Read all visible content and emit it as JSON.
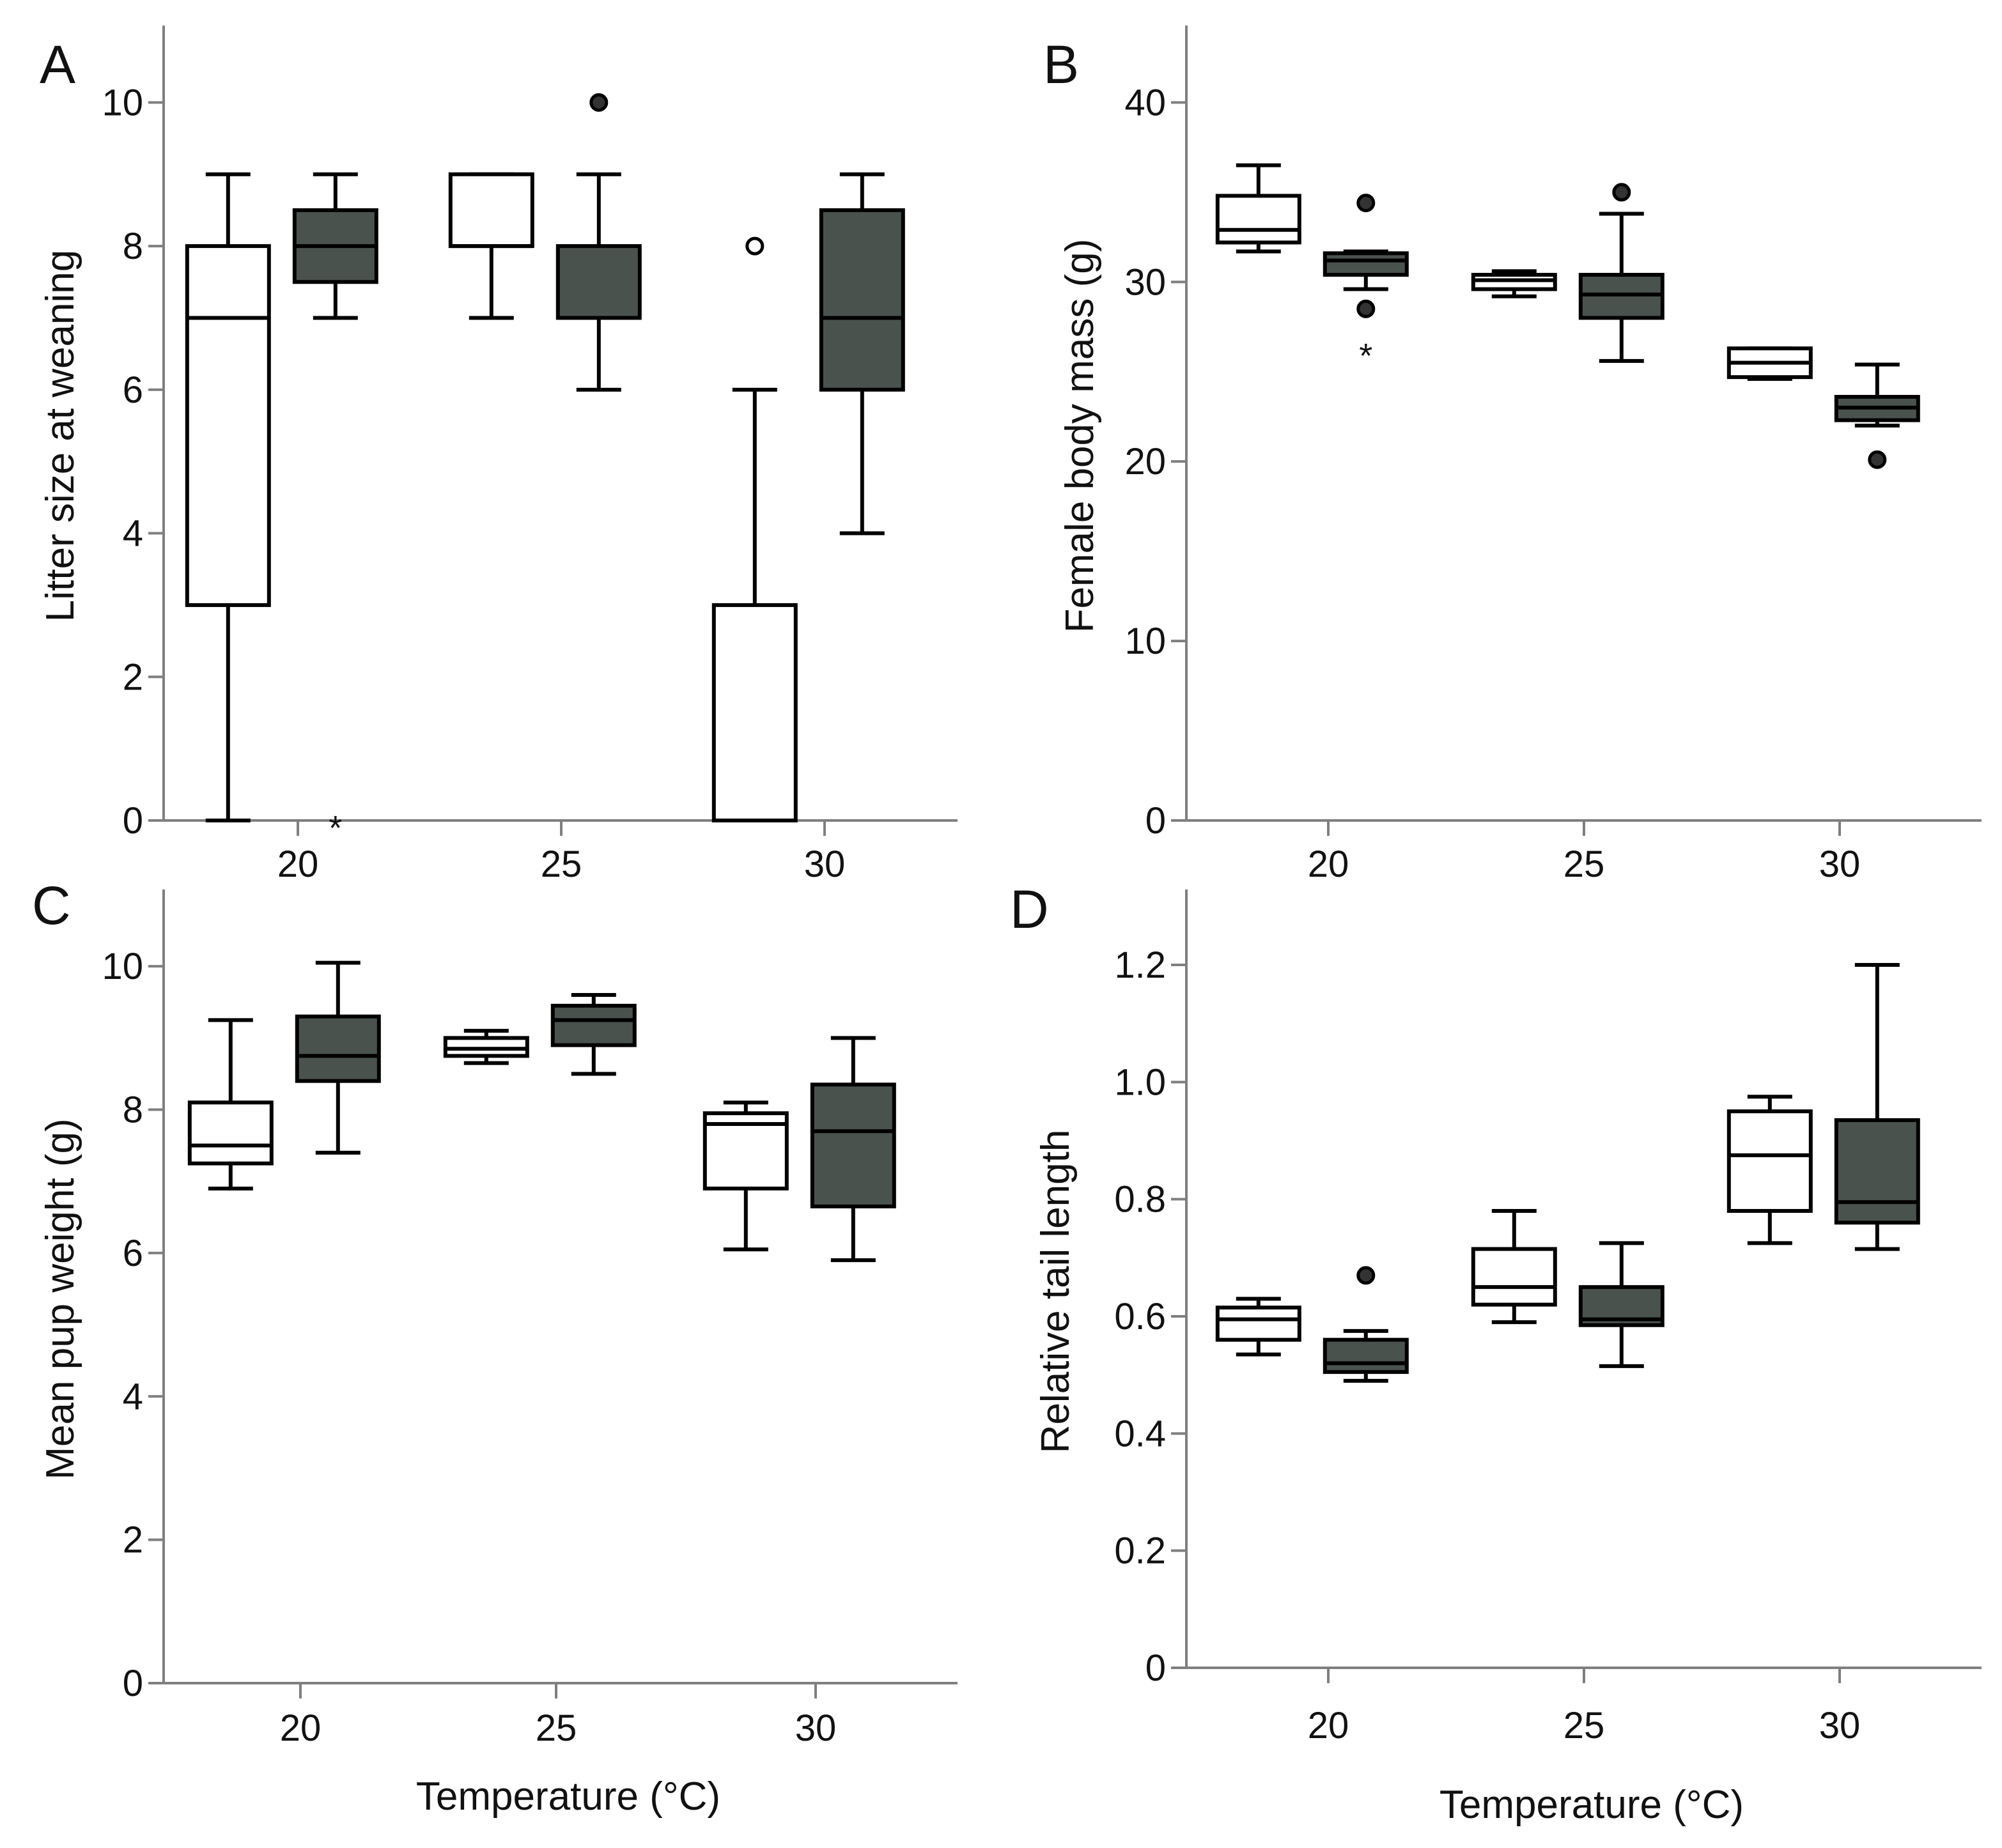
{
  "colors": {
    "box_open": "#ffffff",
    "box_filled": "#4a524e",
    "median_on_filled": "#000000",
    "outlier_star": "#6d6d6d",
    "axis": "#7f7f7f"
  },
  "chart_data": [
    {
      "type": "box",
      "panel": "A",
      "title": "",
      "xlabel": "",
      "ylabel": "Litter size at weaning",
      "categories": [
        "20",
        "25",
        "30"
      ],
      "yticks": [
        "0",
        "2",
        "4",
        "6",
        "8",
        "10"
      ],
      "ylim": [
        0,
        11
      ],
      "series": [
        {
          "name": "open",
          "boxes": [
            {
              "category": "20",
              "whisker_low": 0,
              "q1": 3,
              "median": 7,
              "q3": 8,
              "whisker_high": 9,
              "outliers": []
            },
            {
              "category": "25",
              "whisker_low": 7,
              "q1": 8,
              "median": 8,
              "q3": 9,
              "whisker_high": 9,
              "outliers": []
            },
            {
              "category": "30",
              "whisker_low": 0,
              "q1": 0,
              "median": 0,
              "q3": 3,
              "whisker_high": 6,
              "outliers": [
                {
                  "value": 8,
                  "marker": "open-circle"
                }
              ]
            }
          ]
        },
        {
          "name": "filled",
          "boxes": [
            {
              "category": "20",
              "whisker_low": 7,
              "q1": 7.5,
              "median": 8,
              "q3": 8.5,
              "whisker_high": 9,
              "outliers": [
                {
                  "value": 0,
                  "marker": "star"
                }
              ]
            },
            {
              "category": "25",
              "whisker_low": 6,
              "q1": 7,
              "median": 7,
              "q3": 8,
              "whisker_high": 9,
              "outliers": [
                {
                  "value": 10,
                  "marker": "filled-circle"
                }
              ]
            },
            {
              "category": "30",
              "whisker_low": 4,
              "q1": 6,
              "median": 7,
              "q3": 8.5,
              "whisker_high": 9,
              "outliers": []
            }
          ]
        }
      ]
    },
    {
      "type": "box",
      "panel": "B",
      "title": "",
      "xlabel": "",
      "ylabel": "Female body mass (g)",
      "categories": [
        "20",
        "25",
        "30"
      ],
      "yticks": [
        "0",
        "10",
        "20",
        "30",
        "40"
      ],
      "ylim": [
        0,
        44
      ],
      "series": [
        {
          "name": "open",
          "boxes": [
            {
              "category": "20",
              "whisker_low": 31.7,
              "q1": 32.2,
              "median": 32.9,
              "q3": 34.8,
              "whisker_high": 36.5,
              "outliers": []
            },
            {
              "category": "25",
              "whisker_low": 29.2,
              "q1": 29.6,
              "median": 30.1,
              "q3": 30.4,
              "whisker_high": 30.6,
              "outliers": []
            },
            {
              "category": "30",
              "whisker_low": 24.6,
              "q1": 24.7,
              "median": 25.5,
              "q3": 26.3,
              "whisker_high": 26.3,
              "outliers": []
            }
          ]
        },
        {
          "name": "filled",
          "boxes": [
            {
              "category": "20",
              "whisker_low": 29.6,
              "q1": 30.4,
              "median": 31.2,
              "q3": 31.6,
              "whisker_high": 31.7,
              "outliers": [
                {
                  "value": 34.4,
                  "marker": "filled-circle"
                },
                {
                  "value": 28.5,
                  "marker": "filled-circle"
                },
                {
                  "value": 26.3,
                  "marker": "star"
                }
              ]
            },
            {
              "category": "25",
              "whisker_low": 25.6,
              "q1": 28.0,
              "median": 29.3,
              "q3": 30.4,
              "whisker_high": 33.8,
              "outliers": [
                {
                  "value": 35.0,
                  "marker": "filled-circle"
                }
              ]
            },
            {
              "category": "30",
              "whisker_low": 22.0,
              "q1": 22.3,
              "median": 23.0,
              "q3": 23.6,
              "whisker_high": 25.4,
              "outliers": [
                {
                  "value": 20.1,
                  "marker": "filled-circle"
                }
              ]
            }
          ]
        }
      ]
    },
    {
      "type": "box",
      "panel": "C",
      "title": "",
      "xlabel": "Temperature (°C)",
      "ylabel": "Mean pup weight (g)",
      "categories": [
        "20",
        "25",
        "30"
      ],
      "yticks": [
        "0",
        "2",
        "4",
        "6",
        "8",
        "10"
      ],
      "ylim": [
        0,
        11
      ],
      "series": [
        {
          "name": "open",
          "boxes": [
            {
              "category": "20",
              "whisker_low": 6.9,
              "q1": 7.25,
              "median": 7.5,
              "q3": 8.1,
              "whisker_high": 9.25,
              "outliers": []
            },
            {
              "category": "25",
              "whisker_low": 8.65,
              "q1": 8.75,
              "median": 8.85,
              "q3": 9.0,
              "whisker_high": 9.1,
              "outliers": []
            },
            {
              "category": "30",
              "whisker_low": 6.05,
              "q1": 6.9,
              "median": 7.8,
              "q3": 7.95,
              "whisker_high": 8.1,
              "outliers": []
            }
          ]
        },
        {
          "name": "filled",
          "boxes": [
            {
              "category": "20",
              "whisker_low": 7.4,
              "q1": 8.4,
              "median": 8.75,
              "q3": 9.3,
              "whisker_high": 10.05,
              "outliers": []
            },
            {
              "category": "25",
              "whisker_low": 8.5,
              "q1": 8.9,
              "median": 9.25,
              "q3": 9.45,
              "whisker_high": 9.6,
              "outliers": []
            },
            {
              "category": "30",
              "whisker_low": 5.9,
              "q1": 6.65,
              "median": 7.7,
              "q3": 8.35,
              "whisker_high": 9.0,
              "outliers": []
            }
          ]
        }
      ]
    },
    {
      "type": "box",
      "panel": "D",
      "title": "",
      "xlabel": "Temperature (°C)",
      "ylabel": "Relative tail length",
      "categories": [
        "20",
        "25",
        "30"
      ],
      "yticks": [
        "0",
        "0.2",
        "0.4",
        "0.6",
        "0.8",
        "1.0",
        "1.2"
      ],
      "ylim": [
        0,
        1.32
      ],
      "series": [
        {
          "name": "open",
          "boxes": [
            {
              "category": "20",
              "whisker_low": 0.535,
              "q1": 0.56,
              "median": 0.595,
              "q3": 0.615,
              "whisker_high": 0.63,
              "outliers": []
            },
            {
              "category": "25",
              "whisker_low": 0.59,
              "q1": 0.62,
              "median": 0.65,
              "q3": 0.715,
              "whisker_high": 0.78,
              "outliers": []
            },
            {
              "category": "30",
              "whisker_low": 0.725,
              "q1": 0.78,
              "median": 0.875,
              "q3": 0.95,
              "whisker_high": 0.975,
              "outliers": []
            }
          ]
        },
        {
          "name": "filled",
          "boxes": [
            {
              "category": "20",
              "whisker_low": 0.49,
              "q1": 0.505,
              "median": 0.52,
              "q3": 0.56,
              "whisker_high": 0.575,
              "outliers": [
                {
                  "value": 0.67,
                  "marker": "filled-circle"
                }
              ]
            },
            {
              "category": "25",
              "whisker_low": 0.515,
              "q1": 0.585,
              "median": 0.595,
              "q3": 0.65,
              "whisker_high": 0.725,
              "outliers": []
            },
            {
              "category": "30",
              "whisker_low": 0.715,
              "q1": 0.76,
              "median": 0.795,
              "q3": 0.935,
              "whisker_high": 1.2,
              "outliers": []
            }
          ]
        }
      ]
    }
  ]
}
